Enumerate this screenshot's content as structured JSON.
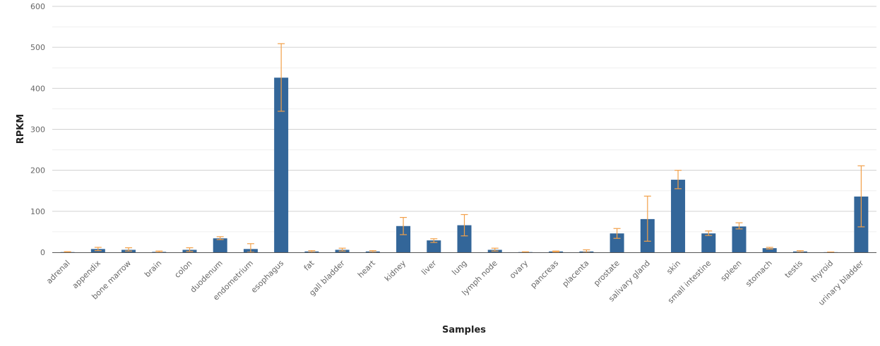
{
  "chart_data": {
    "type": "bar",
    "xlabel": "Samples",
    "ylabel": "RPKM",
    "ylim": [
      0,
      600
    ],
    "yticks": [
      0,
      100,
      200,
      300,
      400,
      500,
      600
    ],
    "grid": true,
    "bar_color": "#336699",
    "error_color": "#f2a04a",
    "categories": [
      "adrenal",
      "appendix",
      "bone marrow",
      "brain",
      "colon",
      "duodenum",
      "endometrium",
      "esophagus",
      "fat",
      "gall bladder",
      "heart",
      "kidney",
      "liver",
      "lung",
      "lymph node",
      "ovary",
      "pancreas",
      "placenta",
      "prostate",
      "salivary gland",
      "skin",
      "small intestine",
      "spleen",
      "stomach",
      "testis",
      "thyroid",
      "urinary bladder"
    ],
    "values": [
      0.5,
      8,
      6,
      1,
      6,
      34,
      8,
      426,
      2,
      6,
      2,
      64,
      29,
      66,
      6,
      0.5,
      2,
      2,
      46,
      81,
      177,
      46,
      63,
      10,
      2,
      0.3,
      136
    ],
    "error_low": [
      0,
      4,
      3,
      0,
      2,
      31,
      0,
      344,
      0,
      3,
      0,
      43,
      24,
      40,
      3,
      0,
      1,
      0,
      34,
      27,
      155,
      41,
      57,
      8,
      0,
      0,
      62
    ],
    "error_high": [
      1.5,
      12,
      11,
      3,
      11,
      38,
      21,
      509,
      4,
      10,
      4,
      85,
      33,
      92,
      10,
      1.2,
      3,
      6,
      58,
      137,
      200,
      52,
      72,
      12,
      4,
      0.7,
      211
    ]
  }
}
